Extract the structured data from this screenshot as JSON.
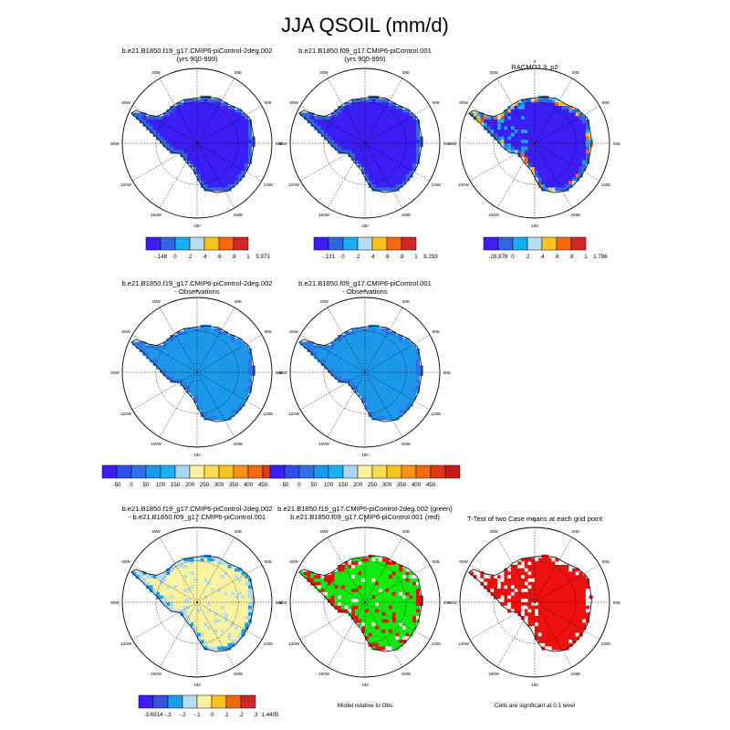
{
  "title": "JJA QSOIL (mm/d)",
  "colors": {
    "row1": [
      "#3b1ff5",
      "#3366dd",
      "#1aacf0",
      "#b6dcf2",
      "#fbc31d",
      "#f26a10",
      "#d02828"
    ],
    "row2": [
      "#3b1ff5",
      "#2f50e8",
      "#2f74e6",
      "#1b98ea",
      "#1ab2f0",
      "#a9d6f2",
      "#faf4a0",
      "#f9dd57",
      "#fbc31d",
      "#f79015",
      "#f26a10",
      "#e43715",
      "#c91a1a"
    ],
    "row3": [
      "#3b1ff5",
      "#3355dd",
      "#1aa0ee",
      "#b6dcf2",
      "#faf4a0",
      "#fbc31d",
      "#f26a10",
      "#d02828"
    ],
    "ocean": "#ffffff",
    "green": "#10ea10",
    "red": "#ee1010"
  },
  "polar_labels": {
    "lon": [
      "0",
      "30E",
      "60E",
      "90E",
      "120E",
      "150E",
      "180",
      "150W",
      "120W",
      "90W",
      "60W",
      "30W"
    ]
  },
  "chart_data": [
    {
      "type": "heatmap",
      "map": "polar-stereographic",
      "title_lines": [
        "b.e21.B1850.f19_g17.CMIP6-piControl-2deg.002",
        "(yrs 900-999)"
      ],
      "fill_style": "row1_low",
      "colorbar": {
        "labels": [
          "-.148",
          "0",
          ".2",
          ".4",
          ".6",
          ".8",
          "1",
          "5.973"
        ],
        "palette": "row1"
      }
    },
    {
      "type": "heatmap",
      "map": "polar-stereographic",
      "title_lines": [
        "b.e21.B1850.f09_g17.CMIP6-piControl.001",
        "(yrs 900-999)"
      ],
      "fill_style": "row1_low",
      "colorbar": {
        "labels": [
          "-.131",
          "0",
          ".2",
          ".4",
          ".6",
          ".8",
          "1",
          "8.293"
        ],
        "palette": "row1"
      }
    },
    {
      "type": "heatmap",
      "map": "polar-stereographic",
      "title_lines": [
        "RACMO2.3_p2"
      ],
      "fill_style": "row1_obs",
      "colorbar": {
        "labels": [
          "-28.878",
          "0",
          ".2",
          ".4",
          ".6",
          ".8",
          "1",
          "1.786"
        ],
        "palette": "row1"
      }
    },
    {
      "type": "heatmap",
      "map": "polar-stereographic",
      "title_lines": [
        "b.e21.B1850.f19_g17.CMIP6-piControl-2deg.002",
        "- Observations"
      ],
      "fill_style": "row2_diff",
      "colorbar": {
        "labels": [
          "-50",
          "0",
          "50",
          "100",
          "150",
          "200",
          "250",
          "300",
          "350",
          "400",
          "450"
        ],
        "palette": "row2"
      }
    },
    {
      "type": "heatmap",
      "map": "polar-stereographic",
      "title_lines": [
        "b.e21.B1850.f09_g17.CMIP6-piControl.001",
        "- Observations"
      ],
      "fill_style": "row2_diff",
      "colorbar": {
        "labels": [
          "-50",
          "0",
          "50",
          "100",
          "150",
          "200",
          "250",
          "300",
          "350",
          "400",
          "450"
        ],
        "palette": "row2"
      }
    },
    {
      "type": "heatmap",
      "map": "polar-stereographic",
      "title_lines": [
        "b.e21.B1850.f19_g17.CMIP6-piControl-2deg.002",
        "- b.e21.B1850.f09_g17.CMIP6-piControl.001"
      ],
      "fill_style": "row3_diff",
      "colorbar": {
        "labels": [
          "-3.6914",
          "-.3",
          "-.2",
          "-.1",
          ".0",
          ".1",
          ".2",
          ".3",
          "1.4405"
        ],
        "palette": "row3"
      }
    },
    {
      "type": "heatmap",
      "map": "polar-stereographic",
      "title_lines": [
        "b.e21.B1850.f19_g17.CMIP6-piControl-2deg.002 (green)",
        "b.e21.B1850.f09_g17.CMIP6-piControl.001 (red)"
      ],
      "fill_style": "model_rel",
      "footer": "Model relative to Obs"
    },
    {
      "type": "heatmap",
      "map": "polar-stereographic",
      "title_lines": [
        "T-Test of two Case means at each grid point"
      ],
      "fill_style": "ttest",
      "footer": "Cells are significant at 0.1 level"
    }
  ]
}
